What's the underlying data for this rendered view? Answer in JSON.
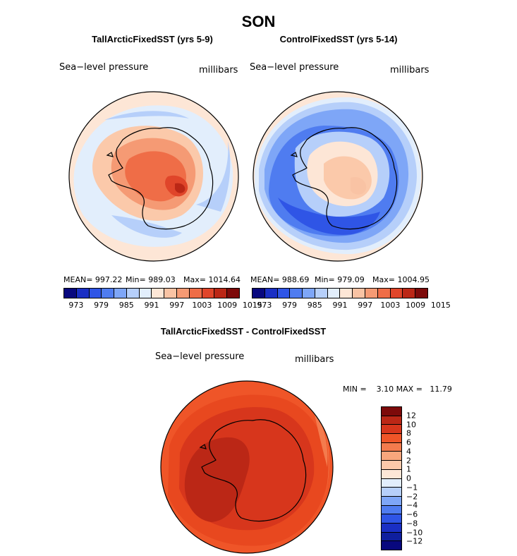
{
  "title": "SON",
  "panels": [
    {
      "title": "TallArcticFixedSST (yrs 5-9)",
      "field_label": "Sea−level pressure",
      "units": "millibars",
      "stats": {
        "mean": "MEAN= 997.22",
        "min": "Min= 989.03",
        "max": "Max= 1014.64"
      }
    },
    {
      "title": "ControlFixedSST (yrs 5-14)",
      "field_label": "Sea−level pressure",
      "units": "millibars",
      "stats": {
        "mean": "MEAN= 988.69",
        "min": "Min= 979.09",
        "max": "Max= 1004.95"
      }
    }
  ],
  "abs_colorbar": {
    "colors": [
      "#08087e",
      "#1a2fc4",
      "#2f55e6",
      "#4f7cf0",
      "#7ea6f7",
      "#b6cffa",
      "#e2eefc",
      "#fde6d6",
      "#f9c3a4",
      "#f59a74",
      "#ef6d47",
      "#e0452a",
      "#bb2716",
      "#7d0a0a"
    ],
    "ticks": [
      "973",
      "979",
      "985",
      "991",
      "997",
      "1003",
      "1009",
      "1015"
    ]
  },
  "diff_panel": {
    "title": "TallArcticFixedSST - ControlFixedSST",
    "field_label": "Sea−level pressure",
    "units": "millibars",
    "stats": "MIN =    3.10 MAX =   11.79"
  },
  "diff_colorbar": {
    "colors": [
      "#7d0a0a",
      "#bb2716",
      "#d7361c",
      "#ef5528",
      "#f47b4d",
      "#f8a67c",
      "#fbc9aa",
      "#fde6d6",
      "#e2eefc",
      "#b6cffa",
      "#7ea6f7",
      "#4f7cf0",
      "#2f55e6",
      "#1a2fc4",
      "#0f1f9e",
      "#08087e"
    ],
    "ticks": [
      "12",
      "10",
      "8",
      "6",
      "4",
      "2",
      "1",
      "0",
      "−1",
      "−2",
      "−4",
      "−6",
      "−8",
      "−10",
      "−12"
    ]
  }
}
